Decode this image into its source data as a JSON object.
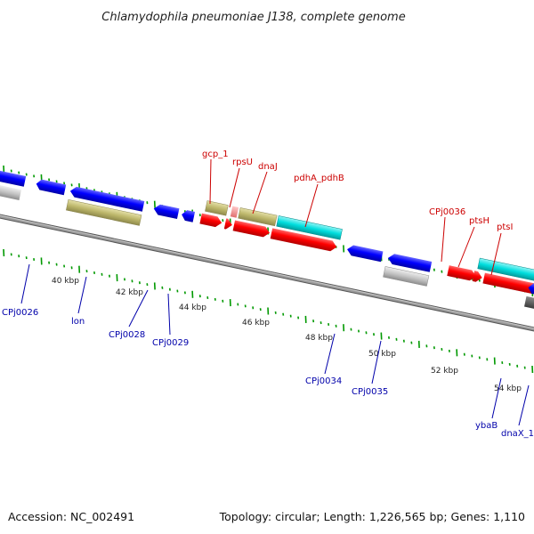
{
  "title": "Chlamydophila pneumoniae J138, complete genome",
  "footer": {
    "accession": "Accession: NC_002491",
    "topology": "Topology: circular; Length: 1,226,565 bp; Genes: 1,110"
  },
  "colors": {
    "backbone": "#808080",
    "forward_cds": "#ff0000",
    "reverse_cds": "#0000ff",
    "khaki": "#bdb76b",
    "cyan": "#00e0e0",
    "grey": "#c0c0c0",
    "magenta": "#ff00cc",
    "ticks": "#009900",
    "label_red": "#cc0000",
    "label_blue": "#0000aa"
  },
  "scale_labels": [
    "40 kbp",
    "42 kbp",
    "44 kbp",
    "46 kbp",
    "48 kbp",
    "50 kbp",
    "52 kbp",
    "54 kbp"
  ],
  "forward_labels": [
    "gcp_1",
    "rpsU",
    "dnaJ",
    "pdhA_pdhB",
    "CPj0036",
    "ptsH",
    "ptsI"
  ],
  "reverse_labels": [
    "CPj0026",
    "lon",
    "CPj0028",
    "CPj0029",
    "CPj0034",
    "CPj0035",
    "ybaB",
    "dnaX_1"
  ]
}
